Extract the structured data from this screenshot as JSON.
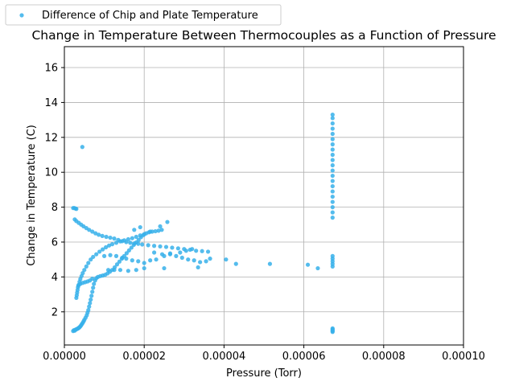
{
  "chart_data": {
    "type": "scatter",
    "title": "Change in Temperature Between Thermocouples as a Function of Pressure",
    "xlabel": "Pressure (Torr)",
    "ylabel": "Change in Temperature (C)",
    "xlim": [
      0,
      0.0001
    ],
    "ylim": [
      0.1,
      17.2
    ],
    "x_ticks": [
      "0.00000",
      "0.00002",
      "0.00004",
      "0.00006",
      "0.00008",
      "0.00010"
    ],
    "y_ticks": [
      "2",
      "4",
      "6",
      "8",
      "10",
      "12",
      "14",
      "16"
    ],
    "grid": true,
    "legend_position": "top-left",
    "series": [
      {
        "name": "Difference of Chip and Plate Temperature",
        "color": "#36b0ea",
        "points": [
          [
            2.2e-06,
            0.9
          ],
          [
            2.4e-06,
            0.95
          ],
          [
            2.6e-06,
            0.92
          ],
          [
            2.8e-06,
            0.98
          ],
          [
            3e-06,
            1.0
          ],
          [
            3.2e-06,
            1.02
          ],
          [
            3.4e-06,
            1.05
          ],
          [
            3.6e-06,
            1.08
          ],
          [
            3.8e-06,
            1.12
          ],
          [
            4e-06,
            1.17
          ],
          [
            4.2e-06,
            1.23
          ],
          [
            4.4e-06,
            1.3
          ],
          [
            4.6e-06,
            1.37
          ],
          [
            4.8e-06,
            1.45
          ],
          [
            5e-06,
            1.54
          ],
          [
            5.3e-06,
            1.66
          ],
          [
            5.6e-06,
            1.8
          ],
          [
            5.8e-06,
            1.95
          ],
          [
            6e-06,
            2.1
          ],
          [
            6.2e-06,
            2.3
          ],
          [
            6.4e-06,
            2.5
          ],
          [
            6.6e-06,
            2.7
          ],
          [
            6.8e-06,
            2.92
          ],
          [
            7e-06,
            3.15
          ],
          [
            7.2e-06,
            3.38
          ],
          [
            7.4e-06,
            3.6
          ],
          [
            7.7e-06,
            3.8
          ],
          [
            8e-06,
            3.93
          ],
          [
            8.4e-06,
            4.0
          ],
          [
            9e-06,
            4.05
          ],
          [
            9.6e-06,
            4.08
          ],
          [
            1.02e-05,
            4.12
          ],
          [
            1.08e-05,
            4.2
          ],
          [
            1.14e-05,
            4.3
          ],
          [
            1.2e-05,
            4.4
          ],
          [
            1.26e-05,
            4.55
          ],
          [
            1.32e-05,
            4.72
          ],
          [
            1.38e-05,
            4.88
          ],
          [
            1.44e-05,
            5.05
          ],
          [
            1.5e-05,
            5.2
          ],
          [
            1.56e-05,
            5.36
          ],
          [
            1.62e-05,
            5.52
          ],
          [
            1.68e-05,
            5.68
          ],
          [
            1.74e-05,
            5.84
          ],
          [
            1.8e-05,
            5.98
          ],
          [
            1.86e-05,
            6.12
          ],
          [
            1.92e-05,
            6.28
          ],
          [
            1.98e-05,
            6.4
          ],
          [
            2.05e-05,
            6.5
          ],
          [
            2.12e-05,
            6.56
          ],
          [
            2.2e-05,
            6.6
          ],
          [
            2.28e-05,
            6.62
          ],
          [
            2.36e-05,
            6.65
          ],
          [
            2.44e-05,
            6.7
          ],
          [
            3e-06,
            2.8
          ],
          [
            3.1e-06,
            2.95
          ],
          [
            3.2e-06,
            3.1
          ],
          [
            3.3e-06,
            3.25
          ],
          [
            3.4e-06,
            3.4
          ],
          [
            3.6e-06,
            3.55
          ],
          [
            3.8e-06,
            3.72
          ],
          [
            4e-06,
            3.88
          ],
          [
            4.3e-06,
            4.05
          ],
          [
            4.6e-06,
            4.22
          ],
          [
            5e-06,
            4.4
          ],
          [
            5.5e-06,
            4.6
          ],
          [
            6e-06,
            4.8
          ],
          [
            6.6e-06,
            5.0
          ],
          [
            7.2e-06,
            5.15
          ],
          [
            8e-06,
            5.3
          ],
          [
            8.8e-06,
            5.45
          ],
          [
            9.6e-06,
            5.58
          ],
          [
            1.04e-05,
            5.7
          ],
          [
            1.12e-05,
            5.8
          ],
          [
            1.2e-05,
            5.88
          ],
          [
            1.3e-05,
            5.96
          ],
          [
            1.4e-05,
            6.04
          ],
          [
            1.5e-05,
            6.1
          ],
          [
            1.6e-05,
            6.16
          ],
          [
            1.7e-05,
            6.22
          ],
          [
            1.8e-05,
            6.3
          ],
          [
            1.9e-05,
            6.38
          ],
          [
            2e-05,
            6.45
          ],
          [
            3.5e-06,
            3.5
          ],
          [
            4e-06,
            3.6
          ],
          [
            4.6e-06,
            3.66
          ],
          [
            5.2e-06,
            3.7
          ],
          [
            5.8e-06,
            3.74
          ],
          [
            6.4e-06,
            3.8
          ],
          [
            7e-06,
            3.9
          ],
          [
            2.2e-06,
            7.95
          ],
          [
            2.5e-06,
            7.95
          ],
          [
            2.8e-06,
            7.92
          ],
          [
            3e-06,
            7.9
          ],
          [
            2.6e-06,
            7.3
          ],
          [
            3e-06,
            7.2
          ],
          [
            3.6e-06,
            7.1
          ],
          [
            4.2e-06,
            7.0
          ],
          [
            4.8e-06,
            6.9
          ],
          [
            5.5e-06,
            6.8
          ],
          [
            6.2e-06,
            6.7
          ],
          [
            7e-06,
            6.6
          ],
          [
            7.8e-06,
            6.5
          ],
          [
            8.6e-06,
            6.42
          ],
          [
            9.5e-06,
            6.35
          ],
          [
            1.05e-05,
            6.3
          ],
          [
            1.15e-05,
            6.25
          ],
          [
            1.25e-05,
            6.2
          ],
          [
            1.35e-05,
            6.12
          ],
          [
            1.45e-05,
            6.05
          ],
          [
            1.55e-05,
            6.0
          ],
          [
            1.65e-05,
            5.96
          ],
          [
            1.75e-05,
            5.92
          ],
          [
            1.85e-05,
            5.9
          ],
          [
            1.95e-05,
            5.86
          ],
          [
            2.1e-05,
            5.82
          ],
          [
            2.25e-05,
            5.78
          ],
          [
            2.4e-05,
            5.75
          ],
          [
            2.55e-05,
            5.72
          ],
          [
            2.7e-05,
            5.68
          ],
          [
            2.85e-05,
            5.64
          ],
          [
            3e-05,
            5.6
          ],
          [
            3.15e-05,
            5.56
          ],
          [
            3.3e-05,
            5.5
          ],
          [
            3.45e-05,
            5.48
          ],
          [
            3.6e-05,
            5.45
          ],
          [
            4.5e-06,
            11.45
          ],
          [
            1e-05,
            5.2
          ],
          [
            1.15e-05,
            5.25
          ],
          [
            1.3e-05,
            5.2
          ],
          [
            1.45e-05,
            5.1
          ],
          [
            1.55e-05,
            5.05
          ],
          [
            1.7e-05,
            4.95
          ],
          [
            1.85e-05,
            4.9
          ],
          [
            2e-05,
            4.8
          ],
          [
            2.15e-05,
            4.95
          ],
          [
            2.3e-05,
            5.0
          ],
          [
            2.5e-05,
            5.2
          ],
          [
            2.65e-05,
            5.3
          ],
          [
            2.8e-05,
            5.2
          ],
          [
            2.95e-05,
            5.1
          ],
          [
            3.1e-05,
            5.0
          ],
          [
            3.25e-05,
            4.95
          ],
          [
            3.4e-05,
            4.85
          ],
          [
            3.55e-05,
            4.9
          ],
          [
            3.65e-05,
            5.05
          ],
          [
            1.1e-05,
            4.4
          ],
          [
            1.25e-05,
            4.4
          ],
          [
            1.4e-05,
            4.4
          ],
          [
            1.6e-05,
            4.35
          ],
          [
            1.8e-05,
            4.4
          ],
          [
            2e-05,
            4.5
          ],
          [
            2.25e-05,
            5.4
          ],
          [
            2.45e-05,
            5.3
          ],
          [
            2.65e-05,
            5.35
          ],
          [
            2.9e-05,
            5.4
          ],
          [
            3.05e-05,
            5.5
          ],
          [
            3.2e-05,
            5.6
          ],
          [
            3.35e-05,
            4.55
          ],
          [
            2.5e-05,
            4.5
          ],
          [
            1.75e-05,
            6.7
          ],
          [
            1.9e-05,
            6.85
          ],
          [
            2.15e-05,
            6.6
          ],
          [
            2.4e-05,
            6.9
          ],
          [
            2.58e-05,
            7.15
          ],
          [
            4.05e-05,
            5.0
          ],
          [
            4.3e-05,
            4.75
          ],
          [
            5.15e-05,
            4.75
          ],
          [
            6.1e-05,
            4.7
          ],
          [
            6.35e-05,
            4.5
          ],
          [
            6.72e-05,
            0.85
          ],
          [
            6.72e-05,
            0.9
          ],
          [
            6.72e-05,
            0.95
          ],
          [
            6.72e-05,
            1.0
          ],
          [
            6.72e-05,
            1.05
          ],
          [
            6.72e-05,
            4.6
          ],
          [
            6.72e-05,
            4.75
          ],
          [
            6.72e-05,
            4.9
          ],
          [
            6.72e-05,
            5.05
          ],
          [
            6.72e-05,
            5.2
          ],
          [
            6.72e-05,
            7.4
          ],
          [
            6.72e-05,
            7.7
          ],
          [
            6.72e-05,
            8.0
          ],
          [
            6.72e-05,
            8.3
          ],
          [
            6.72e-05,
            8.6
          ],
          [
            6.72e-05,
            8.9
          ],
          [
            6.72e-05,
            9.2
          ],
          [
            6.72e-05,
            9.5
          ],
          [
            6.72e-05,
            9.8
          ],
          [
            6.72e-05,
            10.1
          ],
          [
            6.72e-05,
            10.4
          ],
          [
            6.72e-05,
            10.7
          ],
          [
            6.72e-05,
            11.0
          ],
          [
            6.72e-05,
            11.3
          ],
          [
            6.72e-05,
            11.6
          ],
          [
            6.72e-05,
            11.9
          ],
          [
            6.72e-05,
            12.2
          ],
          [
            6.72e-05,
            12.5
          ],
          [
            6.72e-05,
            12.8
          ],
          [
            6.72e-05,
            13.1
          ],
          [
            6.72e-05,
            13.3
          ]
        ]
      }
    ]
  }
}
